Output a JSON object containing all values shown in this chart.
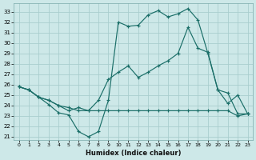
{
  "xlabel": "Humidex (Indice chaleur)",
  "background_color": "#cde8e8",
  "grid_color": "#aacece",
  "line_color": "#1a6e68",
  "xlim": [
    -0.5,
    23.5
  ],
  "ylim": [
    20.7,
    33.8
  ],
  "xticks": [
    0,
    1,
    2,
    3,
    4,
    5,
    6,
    7,
    8,
    9,
    10,
    11,
    12,
    13,
    14,
    15,
    16,
    17,
    18,
    19,
    20,
    21,
    22,
    23
  ],
  "yticks": [
    21,
    22,
    23,
    24,
    25,
    26,
    27,
    28,
    29,
    30,
    31,
    32,
    33
  ],
  "line1_x": [
    0,
    1,
    2,
    3,
    4,
    5,
    6,
    7,
    8,
    9,
    10,
    11,
    12,
    13,
    14,
    15,
    16,
    17,
    18,
    19,
    20,
    21,
    22,
    23
  ],
  "line1_y": [
    25.8,
    25.5,
    24.8,
    24.1,
    23.3,
    23.1,
    21.5,
    21.0,
    21.5,
    24.5,
    32.0,
    31.6,
    31.7,
    32.7,
    33.1,
    32.5,
    32.8,
    33.3,
    32.2,
    29.0,
    25.5,
    24.2,
    25.0,
    23.2
  ],
  "line2_x": [
    0,
    1,
    2,
    3,
    4,
    5,
    6,
    7,
    8,
    9,
    10,
    11,
    12,
    13,
    14,
    15,
    16,
    17,
    18,
    19,
    20,
    21,
    22,
    23
  ],
  "line2_y": [
    25.8,
    25.5,
    24.8,
    24.5,
    24.0,
    23.8,
    23.5,
    23.5,
    24.5,
    26.5,
    27.2,
    27.8,
    26.7,
    27.2,
    27.8,
    28.3,
    29.0,
    31.5,
    29.5,
    29.1,
    25.5,
    25.2,
    23.2,
    23.2
  ],
  "line3_x": [
    0,
    1,
    2,
    3,
    4,
    5,
    6,
    7,
    8,
    9,
    10,
    11,
    12,
    13,
    14,
    15,
    16,
    17,
    18,
    19,
    20,
    21,
    22,
    23
  ],
  "line3_y": [
    25.8,
    25.5,
    24.8,
    24.5,
    24.0,
    23.5,
    23.8,
    23.5,
    23.5,
    23.5,
    23.5,
    23.5,
    23.5,
    23.5,
    23.5,
    23.5,
    23.5,
    23.5,
    23.5,
    23.5,
    23.5,
    23.5,
    23.0,
    23.2
  ]
}
